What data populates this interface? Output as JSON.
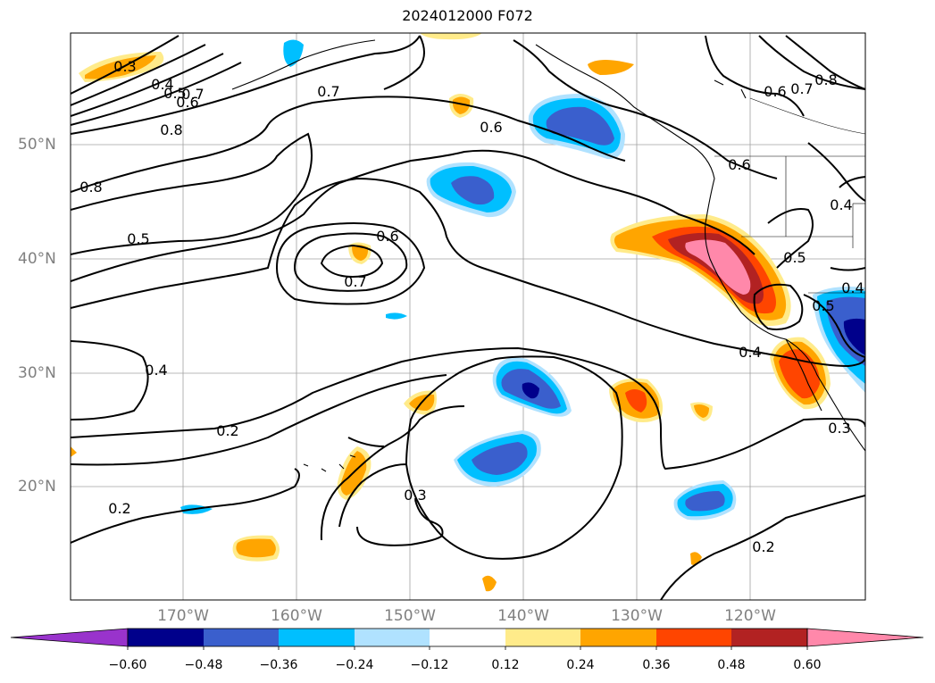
{
  "title": "2024012000 F072",
  "colors": {
    "ocean": "#ffffff",
    "grid": "#a0a0a0",
    "contour": "#000000",
    "levels": [
      "#9933cc",
      "#00008b",
      "#3a5fcd",
      "#00bfff",
      "#b0e2ff",
      "#ffffff",
      "#ffeb8a",
      "#ffa500",
      "#ff4500",
      "#b22222",
      "#ff88aa"
    ]
  },
  "map": {
    "lat_labels": [
      "50°N",
      "40°N",
      "30°N",
      "20°N"
    ],
    "lon_labels": [
      "170°W",
      "160°W",
      "150°W",
      "140°W",
      "130°W",
      "120°W"
    ],
    "contour_labels": [
      "0.3",
      "0.4",
      "0.5",
      "0.6",
      "0.7",
      "0.8",
      "0.7",
      "0.6",
      "0.8",
      "0.5",
      "0.6",
      "0.7",
      "0.6",
      "0.7",
      "0.8",
      "0.6",
      "0.4",
      "0.5",
      "0.4",
      "0.5",
      "0.4",
      "0.4",
      "0.3",
      "0.2",
      "0.2",
      "0.3",
      "0.2"
    ]
  },
  "colorbar": {
    "ticks": [
      "−0.60",
      "−0.48",
      "−0.36",
      "−0.24",
      "−0.12",
      "0.12",
      "0.24",
      "0.36",
      "0.48",
      "0.60"
    ]
  }
}
